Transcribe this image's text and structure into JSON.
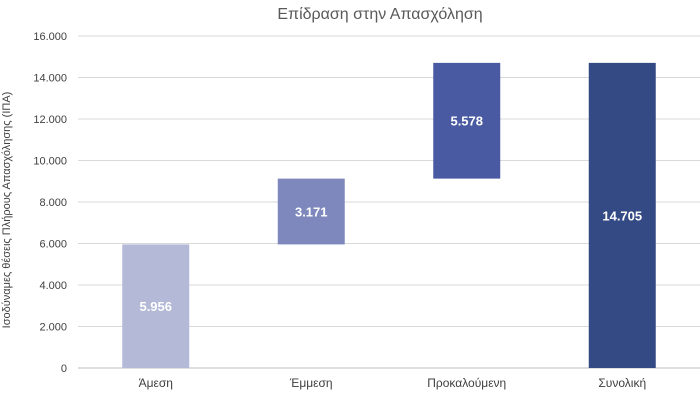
{
  "chart_data": {
    "type": "bar",
    "subtype": "waterfall",
    "title": "Επίδραση στην Απασχόληση",
    "ylabel": "Ισοδύναμες θέσεις Πλήρους Απασχόλησης (ΙΠΑ)",
    "xlabel": "",
    "ylim": [
      0,
      16000
    ],
    "yticks": [
      0,
      2000,
      4000,
      6000,
      8000,
      10000,
      12000,
      14000,
      16000
    ],
    "ytick_labels": [
      "0",
      "2.000",
      "4.000",
      "6.000",
      "8.000",
      "10.000",
      "12.000",
      "14.000",
      "16.000"
    ],
    "grid": true,
    "categories": [
      "Άμεση",
      "Έμμεση",
      "Προκαλούμενη",
      "Συνολική"
    ],
    "values": [
      5956,
      3171,
      5578,
      14705
    ],
    "bases": [
      0,
      5956,
      9127,
      0
    ],
    "value_labels": [
      "5.956",
      "3.171",
      "5.578",
      "14.705"
    ],
    "colors": [
      "#b4b9d8",
      "#7f88bd",
      "#4a5aa2",
      "#344a85"
    ]
  }
}
